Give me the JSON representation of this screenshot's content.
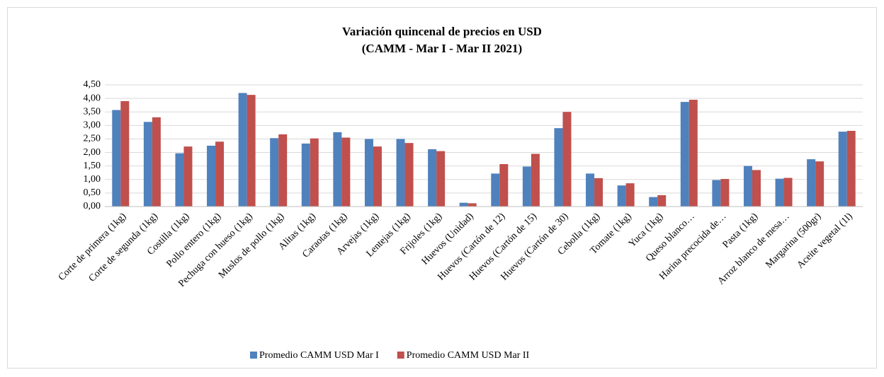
{
  "chart_data": {
    "type": "bar",
    "title": "Variación quincenal de precios en USD",
    "subtitle": "(CAMM - Mar I - Mar II 2021)",
    "categories": [
      "Corte de primera (1kg)",
      "Corte de segunda (1kg)",
      "Costilla (1kg)",
      "Pollo entero (1kg)",
      "Pechuga con hueso (1kg)",
      "Muslos de pollo (1kg)",
      "Alitas (1kg)",
      "Caraotas (1kg)",
      "Arvejas (1kg)",
      "Lentejas (1kg)",
      "Frijoles (1kg)",
      "Huevos (Unidad)",
      "Huevos (Cartón de 12)",
      "Huevos (Cartón de 15)",
      "Huevos (Cartón de 30)",
      "Cebolla (1kg)",
      "Tomate (1kg)",
      "Yuca (1kg)",
      "Queso blanco…",
      "Harina precocida de…",
      "Pasta (1kg)",
      "Arroz blanco de mesa…",
      "Margarina (500gr)",
      "Aceite vegetal (1l)"
    ],
    "series": [
      {
        "name": "Promedio CAMM USD Mar I",
        "color": "#4f81bd",
        "values": [
          3.57,
          3.13,
          1.97,
          2.25,
          4.2,
          2.53,
          2.33,
          2.75,
          2.5,
          2.5,
          2.12,
          0.14,
          1.22,
          1.48,
          2.9,
          1.22,
          0.78,
          0.35,
          3.87,
          0.98,
          1.5,
          1.03,
          1.75,
          2.77
        ]
      },
      {
        "name": "Promedio CAMM USD Mar II",
        "color": "#c0504d",
        "values": [
          3.9,
          3.3,
          2.22,
          2.4,
          4.13,
          2.67,
          2.52,
          2.55,
          2.22,
          2.35,
          2.05,
          0.12,
          1.57,
          1.95,
          3.5,
          1.05,
          0.86,
          0.42,
          3.95,
          1.02,
          1.35,
          1.06,
          1.67,
          2.8
        ]
      }
    ],
    "ylim": [
      0,
      4.5
    ],
    "yticks": [
      {
        "value": 0,
        "label": "0,00"
      },
      {
        "value": 0.5,
        "label": "0,50"
      },
      {
        "value": 1,
        "label": "1,00"
      },
      {
        "value": 1.5,
        "label": "1,50"
      },
      {
        "value": 2,
        "label": "2,00"
      },
      {
        "value": 2.5,
        "label": "2,50"
      },
      {
        "value": 3,
        "label": "3,00"
      },
      {
        "value": 3.5,
        "label": "3,50"
      },
      {
        "value": 4,
        "label": "4,00"
      },
      {
        "value": 4.5,
        "label": "4,50"
      }
    ],
    "grid": true,
    "legend": "bottom"
  }
}
